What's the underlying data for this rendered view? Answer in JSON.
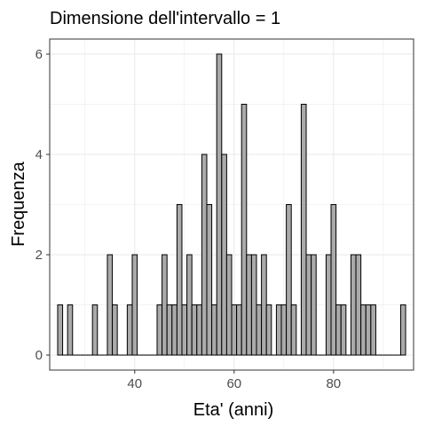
{
  "chart_data": {
    "type": "bar",
    "title": "Dimensione dell'intervallo = 1",
    "xlabel": "Eta' (anni)",
    "ylabel": "Frequenza",
    "binwidth": 1,
    "xlim": [
      22.9,
      96.1
    ],
    "ylim": [
      -0.3,
      6.3
    ],
    "xticks": [
      40,
      60,
      80
    ],
    "yticks": [
      0,
      2,
      4,
      6
    ],
    "grid": true,
    "colors": {
      "bar_fill": "#aaaaaa",
      "bar_stroke": "#000000",
      "grid": "#ebebeb",
      "panel_border": "#333333"
    },
    "bins": [
      {
        "x": 25,
        "count": 1
      },
      {
        "x": 27,
        "count": 1
      },
      {
        "x": 32,
        "count": 1
      },
      {
        "x": 35,
        "count": 2
      },
      {
        "x": 36,
        "count": 1
      },
      {
        "x": 39,
        "count": 1
      },
      {
        "x": 40,
        "count": 2
      },
      {
        "x": 45,
        "count": 1
      },
      {
        "x": 46,
        "count": 2
      },
      {
        "x": 47,
        "count": 1
      },
      {
        "x": 48,
        "count": 1
      },
      {
        "x": 49,
        "count": 3
      },
      {
        "x": 50,
        "count": 1
      },
      {
        "x": 51,
        "count": 2
      },
      {
        "x": 52,
        "count": 1
      },
      {
        "x": 53,
        "count": 1
      },
      {
        "x": 54,
        "count": 4
      },
      {
        "x": 55,
        "count": 3
      },
      {
        "x": 56,
        "count": 1
      },
      {
        "x": 57,
        "count": 6
      },
      {
        "x": 58,
        "count": 4
      },
      {
        "x": 59,
        "count": 2
      },
      {
        "x": 60,
        "count": 1
      },
      {
        "x": 61,
        "count": 1
      },
      {
        "x": 62,
        "count": 5
      },
      {
        "x": 63,
        "count": 2
      },
      {
        "x": 64,
        "count": 2
      },
      {
        "x": 65,
        "count": 1
      },
      {
        "x": 66,
        "count": 2
      },
      {
        "x": 67,
        "count": 1
      },
      {
        "x": 68,
        "count": 0
      },
      {
        "x": 69,
        "count": 1
      },
      {
        "x": 70,
        "count": 1
      },
      {
        "x": 71,
        "count": 3
      },
      {
        "x": 72,
        "count": 1
      },
      {
        "x": 73,
        "count": 0
      },
      {
        "x": 74,
        "count": 5
      },
      {
        "x": 75,
        "count": 2
      },
      {
        "x": 76,
        "count": 2
      },
      {
        "x": 79,
        "count": 2
      },
      {
        "x": 80,
        "count": 3
      },
      {
        "x": 81,
        "count": 1
      },
      {
        "x": 82,
        "count": 1
      },
      {
        "x": 84,
        "count": 2
      },
      {
        "x": 85,
        "count": 2
      },
      {
        "x": 86,
        "count": 1
      },
      {
        "x": 87,
        "count": 1
      },
      {
        "x": 88,
        "count": 1
      },
      {
        "x": 94,
        "count": 1
      }
    ]
  }
}
